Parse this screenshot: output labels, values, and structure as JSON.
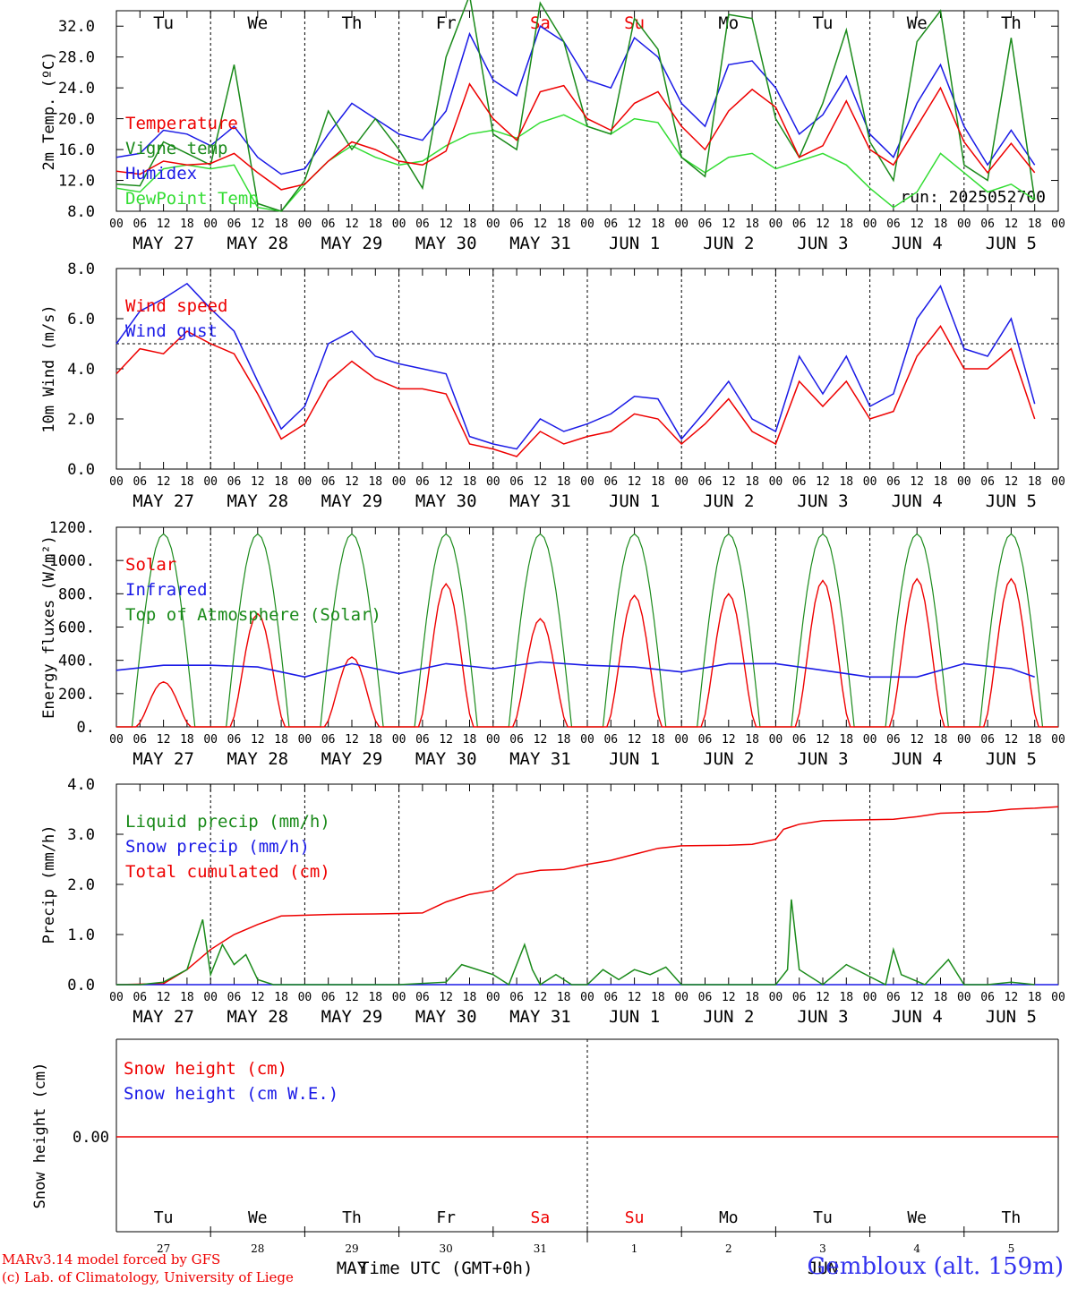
{
  "days": {
    "weekday": [
      "Tu",
      "We",
      "Th",
      "Fr",
      "Sa",
      "Su",
      "Mo",
      "Tu",
      "We",
      "Th"
    ],
    "weekend_flags": [
      false,
      false,
      false,
      false,
      true,
      true,
      false,
      false,
      false,
      false
    ],
    "date_labels": [
      "MAY 27",
      "MAY 28",
      "MAY 29",
      "MAY 30",
      "MAY 31",
      "JUN  1",
      "JUN  2",
      "JUN  3",
      "JUN  4",
      "JUN  5"
    ],
    "day_numbers": [
      "27",
      "28",
      "29",
      "30",
      "31",
      "1",
      "2",
      "3",
      "4",
      "5"
    ],
    "hour_ticks": [
      "00",
      "06",
      "12",
      "18"
    ],
    "final_tick": "00"
  },
  "colors": {
    "red": "#ee0000",
    "green": "#1a8a1a",
    "blue": "#1a1ae6",
    "lightgreen": "#33dd33",
    "weekend": "#ee0000",
    "station": "#3333ee"
  },
  "chart_data": [
    {
      "type": "line",
      "ylabel": "2m Temp. (ºC)",
      "ylim": [
        8,
        34
      ],
      "yticks": [
        "8.0",
        "12.0",
        "16.0",
        "20.0",
        "24.0",
        "28.0",
        "32.0"
      ],
      "run_label": "run: 2025052700",
      "x_unit": "hours since MAY 27 00 UTC",
      "series": [
        {
          "name": "Temperature",
          "color": "red",
          "x": [
            0,
            6,
            12,
            18,
            24,
            30,
            36,
            42,
            48,
            54,
            60,
            66,
            72,
            78,
            84,
            90,
            96,
            102,
            108,
            114,
            120,
            126,
            132,
            138,
            144,
            150,
            156,
            162,
            168,
            174,
            180,
            186,
            192,
            198,
            204,
            210,
            216,
            222,
            228,
            234
          ],
          "values": [
            13.2,
            12.8,
            14.5,
            14.0,
            14.2,
            15.5,
            13.0,
            10.8,
            11.5,
            14.5,
            17.0,
            16.0,
            14.5,
            14.0,
            15.8,
            24.5,
            20.0,
            17.2,
            23.5,
            24.3,
            20.0,
            18.5,
            22.0,
            23.5,
            19.0,
            16.0,
            21.0,
            23.8,
            21.5,
            15.0,
            16.5,
            22.3,
            16.0,
            14.0,
            19.0,
            24.0,
            17.0,
            13.0,
            16.8,
            13.0
          ]
        },
        {
          "name": "Vigne temp",
          "color": "green",
          "x": [
            0,
            6,
            12,
            18,
            24,
            30,
            36,
            42,
            48,
            54,
            60,
            66,
            72,
            78,
            84,
            90,
            96,
            102,
            108,
            114,
            120,
            126,
            132,
            138,
            144,
            150,
            156,
            162,
            168,
            174,
            180,
            186,
            192,
            198,
            204,
            210,
            216,
            222,
            228,
            234
          ],
          "values": [
            11.5,
            11.3,
            17.0,
            15.5,
            14.0,
            27.0,
            9.0,
            8.0,
            12.0,
            21.0,
            16.0,
            20.0,
            16.0,
            11.0,
            28.0,
            36.0,
            18.0,
            16.0,
            35.0,
            30.0,
            19.0,
            18.0,
            33.0,
            29.0,
            15.0,
            12.5,
            33.5,
            33.0,
            20.0,
            15.0,
            22.0,
            31.5,
            17.0,
            12.0,
            30.0,
            34.0,
            14.0,
            12.0,
            30.5,
            9.5
          ]
        },
        {
          "name": "Humidex",
          "color": "blue",
          "x": [
            0,
            6,
            12,
            18,
            24,
            30,
            36,
            42,
            48,
            54,
            60,
            66,
            72,
            78,
            84,
            90,
            96,
            102,
            108,
            114,
            120,
            126,
            132,
            138,
            144,
            150,
            156,
            162,
            168,
            174,
            180,
            186,
            192,
            198,
            204,
            210,
            216,
            222,
            228,
            234
          ],
          "values": [
            15.0,
            15.5,
            18.5,
            18.0,
            16.5,
            19.0,
            15.0,
            12.8,
            13.5,
            18.0,
            22.0,
            20.0,
            18.0,
            17.2,
            21.0,
            31.0,
            25.0,
            23.0,
            32.0,
            30.0,
            25.0,
            24.0,
            30.5,
            28.0,
            22.0,
            19.0,
            27.0,
            27.5,
            24.0,
            18.0,
            20.5,
            25.5,
            18.0,
            15.0,
            22.0,
            27.0,
            19.0,
            14.0,
            18.5,
            14.0
          ]
        },
        {
          "name": "DewPoint Temp",
          "color": "lightgreen",
          "x": [
            0,
            6,
            12,
            18,
            24,
            30,
            36,
            42,
            48,
            54,
            60,
            66,
            72,
            78,
            84,
            90,
            96,
            102,
            108,
            114,
            120,
            126,
            132,
            138,
            144,
            150,
            156,
            162,
            168,
            174,
            180,
            186,
            192,
            198,
            204,
            210,
            216,
            222,
            228,
            234
          ],
          "values": [
            11.0,
            10.5,
            13.5,
            14.0,
            13.5,
            14.0,
            8.5,
            8.0,
            11.5,
            14.5,
            16.5,
            15.0,
            14.0,
            14.5,
            16.5,
            18.0,
            18.5,
            17.5,
            19.5,
            20.5,
            19.0,
            18.0,
            20.0,
            19.5,
            15.0,
            13.0,
            15.0,
            15.5,
            13.5,
            14.5,
            15.5,
            14.0,
            11.0,
            8.5,
            10.5,
            15.5,
            13.0,
            10.5,
            11.5,
            9.5
          ]
        }
      ]
    },
    {
      "type": "line",
      "ylabel": "10m Wind (m/s)",
      "ylim": [
        0,
        8
      ],
      "yticks": [
        "0.0",
        "2.0",
        "4.0",
        "6.0",
        "8.0"
      ],
      "reference_line": 5.0,
      "series": [
        {
          "name": "Wind speed",
          "color": "red",
          "x": [
            0,
            6,
            12,
            18,
            24,
            30,
            36,
            42,
            48,
            54,
            60,
            66,
            72,
            78,
            84,
            90,
            96,
            102,
            108,
            114,
            120,
            126,
            132,
            138,
            144,
            150,
            156,
            162,
            168,
            174,
            180,
            186,
            192,
            198,
            204,
            210,
            216,
            222,
            228,
            234
          ],
          "values": [
            3.8,
            4.8,
            4.6,
            5.5,
            5.0,
            4.6,
            3.0,
            1.2,
            1.8,
            3.5,
            4.3,
            3.6,
            3.2,
            3.2,
            3.0,
            1.0,
            0.8,
            0.5,
            1.5,
            1.0,
            1.3,
            1.5,
            2.2,
            2.0,
            1.0,
            1.8,
            2.8,
            1.5,
            1.0,
            3.5,
            2.5,
            3.5,
            2.0,
            2.3,
            4.5,
            5.7,
            4.0,
            4.0,
            4.8,
            2.0
          ]
        },
        {
          "name": "Wind gust",
          "color": "blue",
          "x": [
            0,
            6,
            12,
            18,
            24,
            30,
            36,
            42,
            48,
            54,
            60,
            66,
            72,
            78,
            84,
            90,
            96,
            102,
            108,
            114,
            120,
            126,
            132,
            138,
            144,
            150,
            156,
            162,
            168,
            174,
            180,
            186,
            192,
            198,
            204,
            210,
            216,
            222,
            228,
            234
          ],
          "values": [
            5.0,
            6.3,
            6.8,
            7.4,
            6.4,
            5.5,
            3.5,
            1.6,
            2.5,
            5.0,
            5.5,
            4.5,
            4.2,
            4.0,
            3.8,
            1.3,
            1.0,
            0.8,
            2.0,
            1.5,
            1.8,
            2.2,
            2.9,
            2.8,
            1.2,
            2.3,
            3.5,
            2.0,
            1.5,
            4.5,
            3.0,
            4.5,
            2.5,
            3.0,
            6.0,
            7.3,
            4.8,
            4.5,
            6.0,
            2.6
          ]
        }
      ]
    },
    {
      "type": "line",
      "ylabel": "Energy fluxes (W/m²)",
      "ylim": [
        0,
        1200
      ],
      "yticks": [
        "0.",
        "200.",
        "400.",
        "600.",
        "800.",
        "1000.",
        "1200."
      ],
      "series": [
        {
          "name": "Solar",
          "color": "red",
          "day_peaks": [
            270,
            680,
            420,
            860,
            650,
            790,
            800,
            880,
            890,
            890
          ]
        },
        {
          "name": "Infrared",
          "color": "blue",
          "x": [
            0,
            12,
            24,
            36,
            48,
            60,
            72,
            84,
            96,
            108,
            120,
            132,
            144,
            156,
            168,
            180,
            192,
            204,
            216,
            228,
            234
          ],
          "values": [
            340,
            370,
            370,
            360,
            300,
            380,
            320,
            380,
            350,
            390,
            370,
            360,
            330,
            380,
            380,
            340,
            300,
            300,
            380,
            350,
            300
          ]
        },
        {
          "name": "Top of Atmosphere (Solar)",
          "color": "green",
          "day_peak": 1160
        }
      ]
    },
    {
      "type": "line",
      "ylabel": "Precip (mm/h)",
      "ylim": [
        0,
        4
      ],
      "yticks": [
        "0.0",
        "1.0",
        "2.0",
        "3.0",
        "4.0"
      ],
      "series": [
        {
          "name": "Liquid precip (mm/h)",
          "color": "green",
          "x": [
            0,
            6,
            12,
            18,
            22,
            24,
            27,
            30,
            33,
            36,
            40,
            44,
            48,
            60,
            72,
            84,
            88,
            90,
            96,
            100,
            104,
            106,
            108,
            112,
            116,
            120,
            124,
            128,
            132,
            136,
            140,
            144,
            150,
            156,
            168,
            171,
            172,
            174,
            180,
            186,
            196,
            198,
            200,
            206,
            212,
            216,
            222,
            228,
            234
          ],
          "values": [
            0,
            0,
            0.05,
            0.3,
            1.3,
            0.2,
            0.8,
            0.4,
            0.6,
            0.1,
            0,
            0,
            0,
            0,
            0,
            0.05,
            0.4,
            0.35,
            0.2,
            0,
            0.8,
            0.3,
            0,
            0.2,
            0,
            0,
            0.3,
            0.1,
            0.3,
            0.2,
            0.35,
            0,
            0,
            0,
            0,
            0.3,
            1.7,
            0.3,
            0,
            0.4,
            0,
            0.7,
            0.2,
            0,
            0.5,
            0,
            0,
            0.05,
            0
          ]
        },
        {
          "name": "Snow precip (mm/h)",
          "color": "blue",
          "x": [
            0,
            240
          ],
          "values": [
            0,
            0
          ]
        },
        {
          "name": "Total cumulated (cm)",
          "color": "red",
          "x": [
            0,
            12,
            18,
            24,
            30,
            36,
            42,
            54,
            66,
            72,
            78,
            84,
            90,
            96,
            102,
            108,
            114,
            120,
            126,
            132,
            138,
            144,
            156,
            162,
            168,
            170,
            174,
            180,
            186,
            198,
            204,
            210,
            222,
            228,
            234,
            240
          ],
          "values": [
            0,
            0.02,
            0.3,
            0.7,
            1.0,
            1.2,
            1.37,
            1.4,
            1.41,
            1.42,
            1.43,
            1.65,
            1.8,
            1.88,
            2.2,
            2.28,
            2.3,
            2.4,
            2.48,
            2.6,
            2.72,
            2.77,
            2.78,
            2.8,
            2.9,
            3.1,
            3.2,
            3.27,
            3.28,
            3.3,
            3.35,
            3.42,
            3.45,
            3.5,
            3.52,
            3.55
          ]
        }
      ]
    },
    {
      "type": "line",
      "ylabel": "Snow height (cm)",
      "ylim": [
        -1,
        1
      ],
      "yticks": [
        "0.00"
      ],
      "series": [
        {
          "name": "Snow height (cm)",
          "color": "red",
          "x": [
            0,
            240
          ],
          "values": [
            0,
            0
          ]
        },
        {
          "name": "Snow height (cm W.E.)",
          "color": "blue",
          "x": [
            0,
            240
          ],
          "values": [
            0,
            0
          ]
        }
      ],
      "month_labels": [
        "MAY",
        "JUN"
      ],
      "xlabel": "Time UTC (GMT+0h)"
    }
  ],
  "footer": {
    "credit_line1": "MARv3.14 model forced by GFS",
    "credit_line2": "(c) Lab. of Climatology, University of Liege",
    "station": "Gembloux (alt. 159m)"
  }
}
